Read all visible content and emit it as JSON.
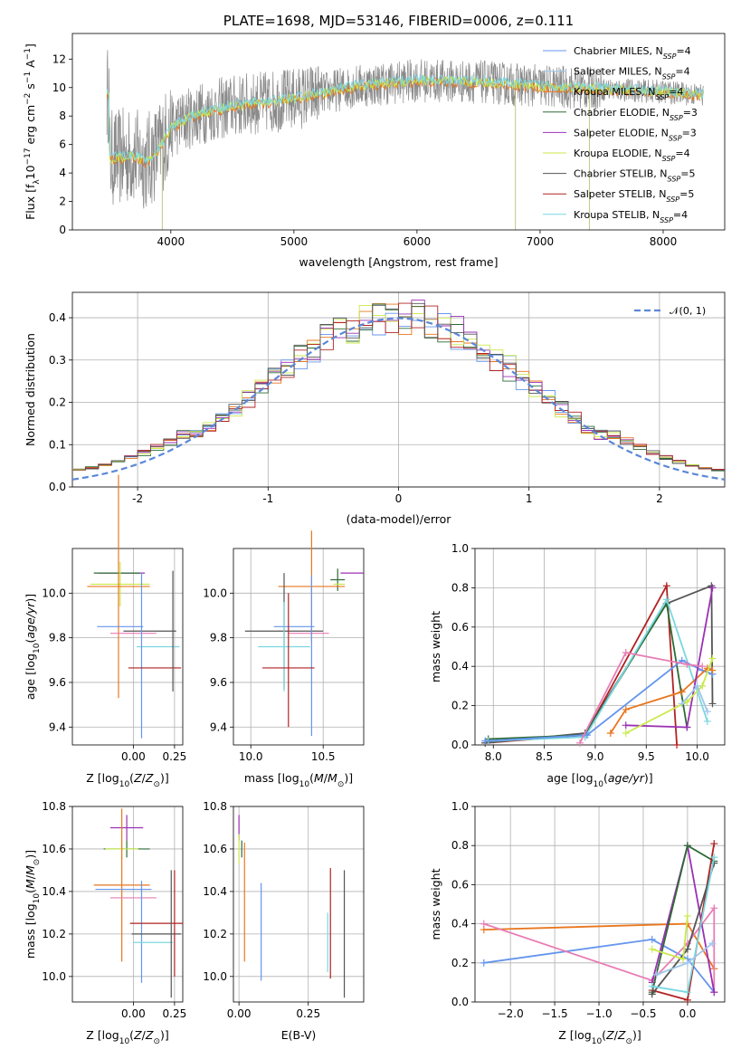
{
  "colors": {
    "chabrier_miles": "#6495ed",
    "salpeter_miles": "#9ec7ea",
    "kroupa_miles": "#e8771f",
    "chabrier_elodie": "#2e6b35",
    "salpeter_elodie": "#9b30b5",
    "kroupa_elodie": "#c9e94a",
    "chabrier_stelib": "#555555",
    "salpeter_stelib": "#b22222",
    "kroupa_stelib": "#7ad7e0",
    "extra_pink": "#e87db5",
    "normal_curve": "#5b87d8"
  },
  "chart_data": [
    {
      "id": "spectrum",
      "type": "line",
      "title": "PLATE=1698, MJD=53146, FIBERID=0006, z=0.111",
      "xlabel": "wavelength [Angstrom, rest frame]",
      "ylabel": "Flux [fλ10⁻¹⁷ erg cm⁻² s⁻¹ A⁻¹]",
      "xlim": [
        3200,
        8500
      ],
      "ylim": [
        0,
        13.8
      ],
      "xticks": [
        4000,
        5000,
        6000,
        7000,
        8000
      ],
      "yticks": [
        0,
        2,
        4,
        6,
        8,
        10,
        12
      ],
      "legend_position": "right",
      "legend": [
        {
          "key": "chabrier_miles",
          "label": "Chabrier MILES, N",
          "sub": "SSP",
          "suffix": "=4"
        },
        {
          "key": "salpeter_miles",
          "label": "Salpeter MILES, N",
          "sub": "SSP",
          "suffix": "=4"
        },
        {
          "key": "kroupa_miles",
          "label": "Kroupa MILES, N",
          "sub": "SSP",
          "suffix": "=4"
        },
        {
          "key": "chabrier_elodie",
          "label": "Chabrier ELODIE, N",
          "sub": "SSP",
          "suffix": "=3"
        },
        {
          "key": "salpeter_elodie",
          "label": "Salpeter ELODIE, N",
          "sub": "SSP",
          "suffix": "=3"
        },
        {
          "key": "kroupa_elodie",
          "label": "Kroupa ELODIE, N",
          "sub": "SSP",
          "suffix": "=4"
        },
        {
          "key": "chabrier_stelib",
          "label": "Chabrier STELIB, N",
          "sub": "SSP",
          "suffix": "=5"
        },
        {
          "key": "salpeter_stelib",
          "label": "Salpeter STELIB, N",
          "sub": "SSP",
          "suffix": "=5"
        },
        {
          "key": "kroupa_stelib",
          "label": "Kroupa STELIB, N",
          "sub": "SSP",
          "suffix": "=4"
        }
      ],
      "continuum": [
        [
          3500,
          5.0
        ],
        [
          3700,
          5.2
        ],
        [
          3800,
          4.8
        ],
        [
          3900,
          5.6
        ],
        [
          4000,
          7.2
        ],
        [
          4200,
          8.1
        ],
        [
          4500,
          8.7
        ],
        [
          5000,
          9.2
        ],
        [
          5500,
          10.1
        ],
        [
          6000,
          10.5
        ],
        [
          6500,
          10.4
        ],
        [
          7000,
          10.1
        ],
        [
          7500,
          9.9
        ],
        [
          8000,
          9.7
        ],
        [
          8300,
          9.5
        ]
      ],
      "data_range": [
        3480,
        8330
      ]
    },
    {
      "id": "residuals",
      "type": "histogram",
      "xlabel": "(data-model)/error",
      "ylabel": "Normed distribution",
      "xlim": [
        -2.5,
        2.5
      ],
      "ylim": [
        0,
        0.46
      ],
      "xticks": [
        -2,
        -1,
        0,
        1,
        2
      ],
      "yticks": [
        0.0,
        0.1,
        0.2,
        0.3,
        0.4
      ],
      "normal_label": "𝒩(0, 1)",
      "legend_position": "top-right",
      "bin_width": 0.1
    },
    {
      "id": "age_vs_Z",
      "type": "errorbar",
      "xlabel": "Z [log10(Z/Z⊙)]",
      "ylabel": "age  [log10(age/yr)]",
      "xlim": [
        -0.37,
        0.3
      ],
      "ylim": [
        9.32,
        10.2
      ],
      "xticks": [
        -0.0,
        0.25
      ],
      "xticklabels": [
        "0.00",
        "0.25"
      ],
      "yticks": [
        9.4,
        9.6,
        9.8,
        10.0
      ],
      "points": [
        {
          "key": "salpeter_elodie",
          "x": -0.07,
          "y": 10.09,
          "xe": 0.14,
          "ye": 0.0
        },
        {
          "key": "chabrier_elodie",
          "x": -0.1,
          "y": 10.09,
          "xe": 0.14,
          "ye": 0.0
        },
        {
          "key": "kroupa_elodie",
          "x": -0.08,
          "y": 10.04,
          "xe": 0.18,
          "ye": 0.1
        },
        {
          "key": "kroupa_miles",
          "x": -0.09,
          "y": 10.03,
          "xe": 0.19,
          "ye": 0.5
        },
        {
          "key": "chabrier_miles",
          "x": -0.08,
          "y": 9.85,
          "xe": 0.14,
          "ye": 0.0
        },
        {
          "key": "chabrier_stelib",
          "x": 0.1,
          "y": 9.83,
          "xe": 0.16,
          "ye": 0.0
        },
        {
          "key": "extra_pink",
          "x": 0.0,
          "y": 9.82,
          "xe": 0.14,
          "ye": 0.0
        },
        {
          "key": "kroupa_stelib",
          "x": 0.15,
          "y": 9.76,
          "xe": 0.13,
          "ye": 0.0
        },
        {
          "key": "chabrier_miles",
          "x": 0.05,
          "y": 9.72,
          "xe": 0.0,
          "ye": 0.37
        },
        {
          "key": "salpeter_stelib",
          "x": 0.13,
          "y": 9.665,
          "xe": 0.16,
          "ye": 0.0
        },
        {
          "key": "chabrier_stelib",
          "x": 0.24,
          "y": 9.83,
          "xe": 0.0,
          "ye": 0.27
        },
        {
          "key": "chabrier_elodie",
          "x": 0.0,
          "y": 9.6,
          "xe": 0.0,
          "ye": 0.0
        },
        {
          "key": "salpeter_miles",
          "x": -0.02,
          "y": 10.12,
          "xe": 0.0,
          "ye": 0.0
        }
      ]
    },
    {
      "id": "age_vs_mass",
      "type": "errorbar",
      "xlabel": "mass [log10(M/M⊙)]",
      "ylabel": "",
      "xlim": [
        9.88,
        10.78
      ],
      "ylim": [
        9.32,
        10.2
      ],
      "xticks": [
        10.0,
        10.5
      ],
      "xticklabels": [
        "10.0",
        "10.5"
      ],
      "yticks": [
        9.4,
        9.6,
        9.8,
        10.0
      ],
      "points": [
        {
          "key": "salpeter_elodie",
          "x": 10.7,
          "y": 10.09,
          "xe": 0.08,
          "ye": 0.0
        },
        {
          "key": "chabrier_elodie",
          "x": 10.6,
          "y": 10.06,
          "xe": 0.05,
          "ye": 0.05
        },
        {
          "key": "kroupa_elodie",
          "x": 10.61,
          "y": 10.04,
          "xe": 0.04,
          "ye": 0.0
        },
        {
          "key": "kroupa_miles",
          "x": 10.42,
          "y": 10.03,
          "xe": 0.23,
          "ye": 0.25
        },
        {
          "key": "chabrier_miles",
          "x": 10.3,
          "y": 9.85,
          "xe": 0.14,
          "ye": 0.0
        },
        {
          "key": "chabrier_stelib",
          "x": 10.23,
          "y": 9.83,
          "xe": 0.27,
          "ye": 0.26
        },
        {
          "key": "extra_pink",
          "x": 10.4,
          "y": 9.82,
          "xe": 0.14,
          "ye": 0.0
        },
        {
          "key": "kroupa_stelib",
          "x": 10.23,
          "y": 9.76,
          "xe": 0.18,
          "ye": 0.2
        },
        {
          "key": "chabrier_miles",
          "x": 10.42,
          "y": 9.72,
          "xe": 0.0,
          "ye": 0.36
        },
        {
          "key": "salpeter_stelib",
          "x": 10.26,
          "y": 9.665,
          "xe": 0.18,
          "ye": 0.0
        },
        {
          "key": "salpeter_stelib",
          "x": 10.26,
          "y": 9.7,
          "xe": 0.0,
          "ye": 0.3
        }
      ]
    },
    {
      "id": "weight_vs_age",
      "type": "line",
      "xlabel": "age  [log10(age/yr)]",
      "ylabel": "mass weight",
      "xlim": [
        7.82,
        10.27
      ],
      "ylim": [
        0,
        1
      ],
      "xticks": [
        8.0,
        8.5,
        9.0,
        9.5,
        10.0
      ],
      "yticks": [
        0.0,
        0.2,
        0.4,
        0.6,
        0.8,
        1.0
      ],
      "series": [
        {
          "key": "salpeter_stelib",
          "x": [
            7.92,
            8.9,
            9.7,
            9.8
          ],
          "y": [
            0.01,
            0.05,
            0.81,
            0.0
          ]
        },
        {
          "key": "chabrier_stelib",
          "x": [
            7.92,
            8.9,
            9.7,
            10.14,
            10.15
          ],
          "y": [
            0.01,
            0.06,
            0.72,
            0.81,
            0.21
          ]
        },
        {
          "key": "chabrier_elodie",
          "x": [
            7.95,
            8.9,
            9.7,
            9.9
          ],
          "y": [
            0.03,
            0.05,
            0.72,
            0.09
          ]
        },
        {
          "key": "kroupa_stelib",
          "x": [
            7.95,
            8.9,
            9.7,
            10.1
          ],
          "y": [
            0.02,
            0.04,
            0.74,
            0.12
          ]
        },
        {
          "key": "chabrier_miles",
          "x": [
            7.92,
            8.92,
            9.85,
            10.05,
            10.15
          ],
          "y": [
            0.02,
            0.05,
            0.43,
            0.38,
            0.36
          ]
        },
        {
          "key": "kroupa_miles",
          "x": [
            9.15,
            9.3,
            9.85,
            10.1,
            10.15
          ],
          "y": [
            0.06,
            0.18,
            0.27,
            0.39,
            0.38
          ]
        },
        {
          "key": "salpeter_elodie",
          "x": [
            9.3,
            9.9,
            10.15
          ],
          "y": [
            0.1,
            0.09,
            0.8
          ]
        },
        {
          "key": "kroupa_elodie",
          "x": [
            9.3,
            9.9,
            10.05,
            10.15
          ],
          "y": [
            0.06,
            0.22,
            0.3,
            0.44
          ]
        },
        {
          "key": "extra_pink",
          "x": [
            8.85,
            9.3,
            9.9,
            10.05
          ],
          "y": [
            0.01,
            0.47,
            0.41,
            0.4
          ]
        },
        {
          "key": "salpeter_miles",
          "x": [
            9.85,
            10.0,
            10.1
          ],
          "y": [
            0.21,
            0.3,
            0.17
          ]
        }
      ]
    },
    {
      "id": "mass_vs_Z",
      "type": "errorbar",
      "xlabel": "Z [log10(Z/Z⊙)]",
      "ylabel": "mass [log10(M/M⊙)]",
      "xlim": [
        -0.37,
        0.3
      ],
      "ylim": [
        9.88,
        10.8
      ],
      "xticks": [
        0.0,
        0.25
      ],
      "xticklabels": [
        "0.00",
        "0.25"
      ],
      "yticks": [
        10.0,
        10.2,
        10.4,
        10.6,
        10.8
      ],
      "points": [
        {
          "key": "salpeter_elodie",
          "x": -0.04,
          "y": 10.7,
          "xe": 0.1,
          "ye": 0.06
        },
        {
          "key": "chabrier_elodie",
          "x": -0.04,
          "y": 10.6,
          "xe": 0.14,
          "ye": 0.04
        },
        {
          "key": "kroupa_elodie",
          "x": -0.07,
          "y": 10.6,
          "xe": 0.1,
          "ye": 0.05
        },
        {
          "key": "kroupa_miles",
          "x": -0.07,
          "y": 10.43,
          "xe": 0.17,
          "ye": 0.36
        },
        {
          "key": "chabrier_miles",
          "x": -0.06,
          "y": 10.41,
          "xe": 0.17,
          "ye": 0.0
        },
        {
          "key": "extra_pink",
          "x": -0.0,
          "y": 10.37,
          "xe": 0.14,
          "ye": 0.0
        },
        {
          "key": "chabrier_miles",
          "x": 0.05,
          "y": 10.21,
          "xe": 0.0,
          "ye": 0.24
        },
        {
          "key": "salpeter_stelib",
          "x": 0.14,
          "y": 10.25,
          "xe": 0.16,
          "ye": 0.0
        },
        {
          "key": "chabrier_stelib",
          "x": 0.14,
          "y": 10.2,
          "xe": 0.15,
          "ye": 0.0
        },
        {
          "key": "kroupa_stelib",
          "x": 0.12,
          "y": 10.16,
          "xe": 0.12,
          "ye": 0.0
        },
        {
          "key": "salpeter_stelib",
          "x": 0.25,
          "y": 10.25,
          "xe": 0.0,
          "ye": 0.25
        },
        {
          "key": "chabrier_stelib",
          "x": 0.23,
          "y": 10.2,
          "xe": 0.0,
          "ye": 0.3
        }
      ]
    },
    {
      "id": "mass_vs_ebv",
      "type": "errorbar",
      "xlabel": "E(B-V)",
      "ylabel": "",
      "xlim": [
        -0.02,
        0.45
      ],
      "ylim": [
        9.88,
        10.8
      ],
      "xticks": [
        0.0,
        0.25
      ],
      "xticklabels": [
        "0.00",
        "0.25"
      ],
      "yticks": [
        10.0,
        10.2,
        10.4,
        10.6,
        10.8
      ],
      "points": [
        {
          "key": "salpeter_elodie",
          "x": 0.0,
          "y": 10.7,
          "xe": 0.0,
          "ye": 0.06
        },
        {
          "key": "kroupa_elodie",
          "x": 0.0,
          "y": 10.6,
          "xe": 0.0,
          "ye": 0.07
        },
        {
          "key": "chabrier_elodie",
          "x": 0.01,
          "y": 10.6,
          "xe": 0.0,
          "ye": 0.04
        },
        {
          "key": "kroupa_miles",
          "x": 0.02,
          "y": 10.35,
          "xe": 0.0,
          "ye": 0.28
        },
        {
          "key": "chabrier_miles",
          "x": 0.08,
          "y": 10.21,
          "xe": 0.0,
          "ye": 0.23
        },
        {
          "key": "salpeter_stelib",
          "x": 0.33,
          "y": 10.25,
          "xe": 0.0,
          "ye": 0.26
        },
        {
          "key": "kroupa_stelib",
          "x": 0.32,
          "y": 10.16,
          "xe": 0.0,
          "ye": 0.14
        },
        {
          "key": "chabrier_stelib",
          "x": 0.38,
          "y": 10.2,
          "xe": 0.0,
          "ye": 0.3
        }
      ]
    },
    {
      "id": "weight_vs_Z",
      "type": "line",
      "xlabel": "Z [log10(Z/Z⊙)]",
      "ylabel": "mass weight",
      "xlim": [
        -2.4,
        0.42
      ],
      "ylim": [
        0,
        1
      ],
      "xticks": [
        -2.0,
        -1.5,
        -1.0,
        -0.5,
        0.0
      ],
      "yticks": [
        0.0,
        0.2,
        0.4,
        0.6,
        0.8,
        1.0
      ],
      "series": [
        {
          "key": "chabrier_miles",
          "x": [
            -2.3,
            -0.4,
            0.0,
            0.3
          ],
          "y": [
            0.2,
            0.32,
            0.22,
            0.05
          ]
        },
        {
          "key": "kroupa_miles",
          "x": [
            -2.3,
            0.0,
            0.3
          ],
          "y": [
            0.37,
            0.4,
            0.17
          ]
        },
        {
          "key": "extra_pink",
          "x": [
            -2.3,
            -0.4,
            0.0,
            0.3,
            0.3
          ],
          "y": [
            0.4,
            0.11,
            0.3,
            0.48,
            0.05
          ]
        },
        {
          "key": "salpeter_elodie",
          "x": [
            -0.4,
            0.0,
            0.3
          ],
          "y": [
            0.1,
            0.8,
            0.05
          ]
        },
        {
          "key": "chabrier_elodie",
          "x": [
            -0.4,
            0.0,
            0.3
          ],
          "y": [
            0.05,
            0.8,
            0.72
          ]
        },
        {
          "key": "salpeter_stelib",
          "x": [
            -0.4,
            0.0,
            0.3
          ],
          "y": [
            0.06,
            0.01,
            0.81
          ]
        },
        {
          "key": "chabrier_stelib",
          "x": [
            -0.4,
            0.0,
            0.3
          ],
          "y": [
            0.04,
            0.27,
            0.71
          ]
        },
        {
          "key": "kroupa_stelib",
          "x": [
            -0.4,
            0.0,
            0.3
          ],
          "y": [
            0.08,
            0.05,
            0.74
          ]
        },
        {
          "key": "kroupa_elodie",
          "x": [
            -0.4,
            -0.05,
            0.0
          ],
          "y": [
            0.27,
            0.22,
            0.44
          ]
        },
        {
          "key": "salpeter_miles",
          "x": [
            -0.35,
            0.0,
            0.28
          ],
          "y": [
            0.14,
            0.2,
            0.3
          ]
        }
      ]
    }
  ]
}
